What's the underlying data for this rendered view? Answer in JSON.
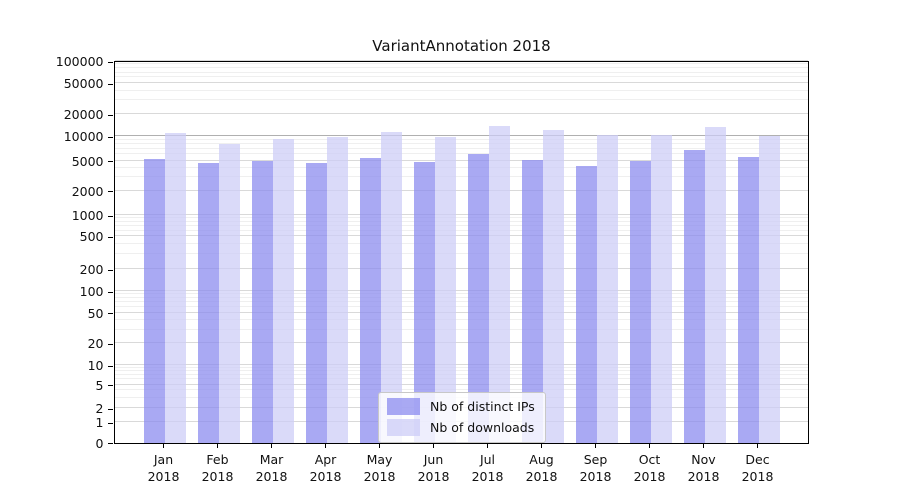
{
  "title": "VariantAnnotation 2018",
  "legend": {
    "items": [
      {
        "label": "Nb of distinct IPs",
        "color": "rgba(136,136,238,0.72)"
      },
      {
        "label": "Nb of downloads",
        "color": "rgba(204,204,247,0.72)"
      }
    ]
  },
  "colors": {
    "bar_distinct_ips": "rgba(136,136,238,0.72)",
    "bar_downloads": "rgba(204,204,247,0.72)",
    "grid_major": "#d9d9d9",
    "grid_minor": "#efefef",
    "grid_10000": "#b0b0b0",
    "axis": "#000000"
  },
  "chart_data": {
    "type": "bar",
    "title": "VariantAnnotation 2018",
    "categories": [
      "Jan 2018",
      "Feb 2018",
      "Mar 2018",
      "Apr 2018",
      "May 2018",
      "Jun 2018",
      "Jul 2018",
      "Aug 2018",
      "Sep 2018",
      "Oct 2018",
      "Nov 2018",
      "Dec 2018"
    ],
    "series": [
      {
        "name": "Nb of distinct IPs",
        "values": [
          5300,
          4600,
          4900,
          4700,
          5400,
          4800,
          6000,
          5100,
          4300,
          5000,
          6700,
          5600
        ]
      },
      {
        "name": "Nb of downloads",
        "values": [
          11000,
          8100,
          9200,
          9900,
          11500,
          9700,
          14000,
          12000,
          10300,
          10300,
          13400,
          10000
        ]
      }
    ],
    "xlabel": "",
    "ylabel": "",
    "yscale": "symlog",
    "yticks": [
      0,
      1,
      2,
      5,
      10,
      20,
      50,
      100,
      200,
      500,
      1000,
      2000,
      5000,
      10000,
      20000,
      50000,
      100000
    ],
    "ylim": [
      0,
      100000
    ],
    "grid": true,
    "legend_position": "lower center"
  }
}
